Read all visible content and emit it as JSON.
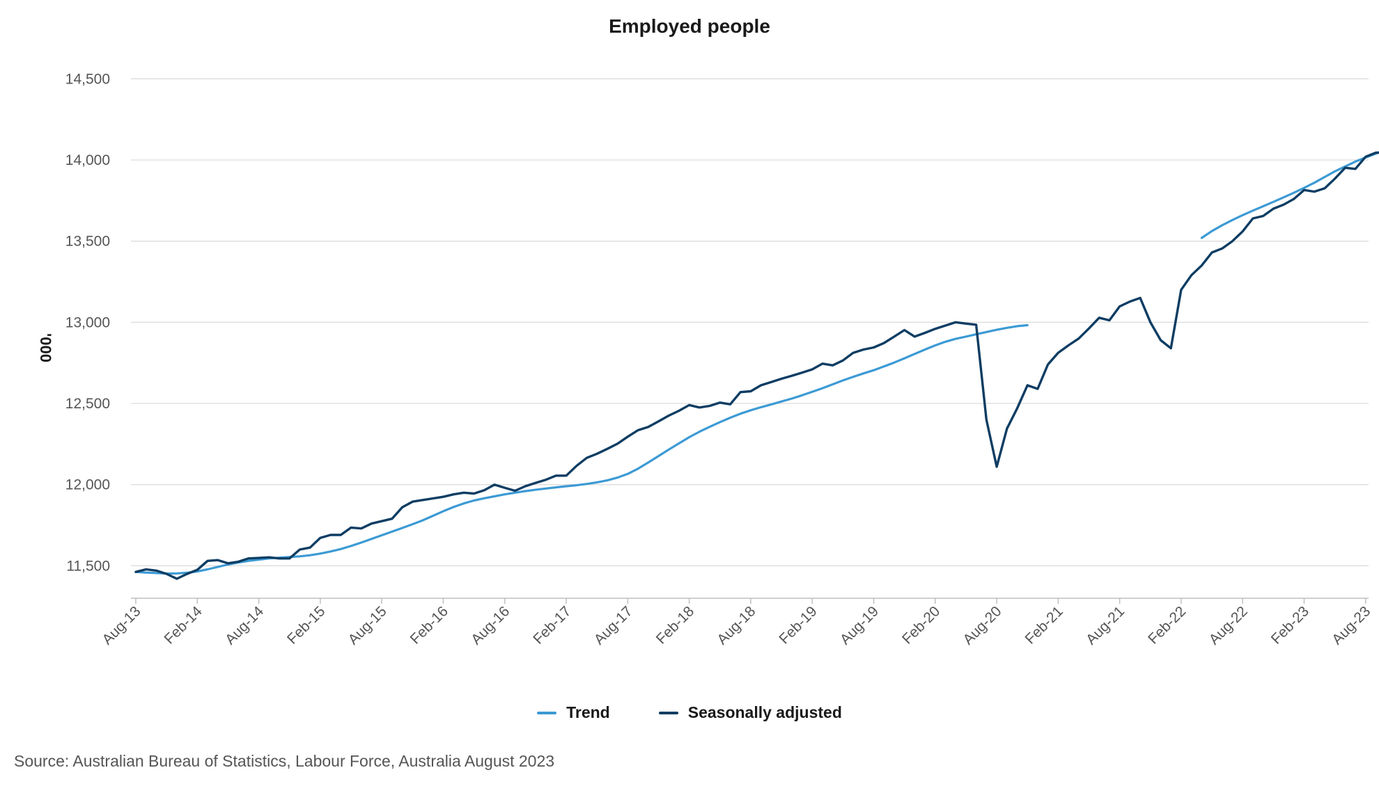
{
  "chart_data": {
    "type": "line",
    "title": "Employed people",
    "ylabel": "'000",
    "xlabel": "",
    "ylim": [
      11300,
      14600
    ],
    "yticks": [
      "11,500",
      "12,000",
      "12,500",
      "13,000",
      "13,500",
      "14,000",
      "14,500"
    ],
    "ytick_values": [
      11500,
      12000,
      12500,
      13000,
      13500,
      14000,
      14500
    ],
    "xticks": [
      "Aug-13",
      "Feb-14",
      "Aug-14",
      "Feb-15",
      "Aug-15",
      "Feb-16",
      "Aug-16",
      "Feb-17",
      "Aug-17",
      "Feb-18",
      "Aug-18",
      "Feb-19",
      "Aug-19",
      "Feb-20",
      "Aug-20",
      "Feb-21",
      "Aug-21",
      "Feb-22",
      "Aug-22",
      "Feb-23",
      "Aug-23"
    ],
    "x_start": "Aug-13",
    "grid": true,
    "legend": "bottom",
    "series": [
      {
        "name": "Trend",
        "color": "#3c9ad4",
        "segments": [
          {
            "start": "Aug-13",
            "values": [
              11462,
              11458,
              11455,
              11452,
              11453,
              11457,
              11465,
              11478,
              11493,
              11508,
              11520,
              11530,
              11538,
              11545,
              11550,
              11554,
              11558,
              11565,
              11575,
              11588,
              11603,
              11622,
              11643,
              11665,
              11688,
              11710,
              11733,
              11756,
              11780,
              11808,
              11836,
              11862,
              11884,
              11902,
              11916,
              11928,
              11940,
              11950,
              11960,
              11968,
              11976,
              11983,
              11990,
              11996,
              12004,
              12014,
              12026,
              12043,
              12066,
              12098,
              12136,
              12176,
              12216,
              12254,
              12292,
              12326,
              12356,
              12385,
              12412,
              12437,
              12458,
              12477,
              12494,
              12512,
              12530,
              12550,
              12572,
              12594,
              12618,
              12642,
              12664,
              12685,
              12705,
              12728,
              12752,
              12778,
              12805,
              12832,
              12858,
              12880,
              12898,
              12912,
              12926,
              12940,
              12954,
              12966,
              12976,
              12982
            ]
          },
          {
            "start": "Apr-22",
            "values": [
              13520,
              13562,
              13598,
              13630,
              13660,
              13688,
              13715,
              13742,
              13770,
              13798,
              13828,
              13860,
              13895,
              13930,
              13960,
              13990,
              14015,
              14040,
              14065,
              14090,
              14110
            ]
          }
        ]
      },
      {
        "name": "Seasonally adjusted",
        "color": "#0e3d63",
        "segments": [
          {
            "start": "Aug-13",
            "values": [
              11462,
              11478,
              11470,
              11450,
              11420,
              11450,
              11475,
              11530,
              11535,
              11515,
              11525,
              11545,
              11548,
              11552,
              11545,
              11545,
              11600,
              11612,
              11672,
              11690,
              11690,
              11735,
              11730,
              11760,
              11775,
              11790,
              11860,
              11895,
              11905,
              11915,
              11925,
              11940,
              11950,
              11945,
              11965,
              12000,
              11980,
              11962,
              11990,
              12010,
              12030,
              12055,
              12055,
              12115,
              12165,
              12190,
              12220,
              12252,
              12295,
              12335,
              12355,
              12390,
              12425,
              12455,
              12490,
              12475,
              12485,
              12505,
              12495,
              12570,
              12575,
              12612,
              12632,
              12652,
              12670,
              12690,
              12710,
              12745,
              12735,
              12765,
              12812,
              12832,
              12845,
              12872,
              12912,
              12952,
              12912,
              12935,
              12960,
              12980,
              13000,
              12992,
              12985,
              12400,
              12110,
              12345,
              12470,
              12612,
              12590,
              12740,
              12812,
              12858,
              12900,
              12962,
              13028,
              13012,
              13098,
              13128,
              13150,
              13000,
              12890,
              12840,
              13200,
              13290,
              13350,
              13430,
              13455,
              13500,
              13560,
              13640,
              13655,
              13700,
              13725,
              13760,
              13815,
              13805,
              13825,
              13885,
              13952,
              13945,
              14020,
              14045,
              14045,
              14110
            ]
          }
        ]
      }
    ]
  },
  "legend": {
    "items": [
      {
        "label": "Trend",
        "color": "#3c9ad4"
      },
      {
        "label": "Seasonally adjusted",
        "color": "#0e3d63"
      }
    ]
  },
  "source": "Source: Australian Bureau of Statistics, Labour Force, Australia August 2023"
}
